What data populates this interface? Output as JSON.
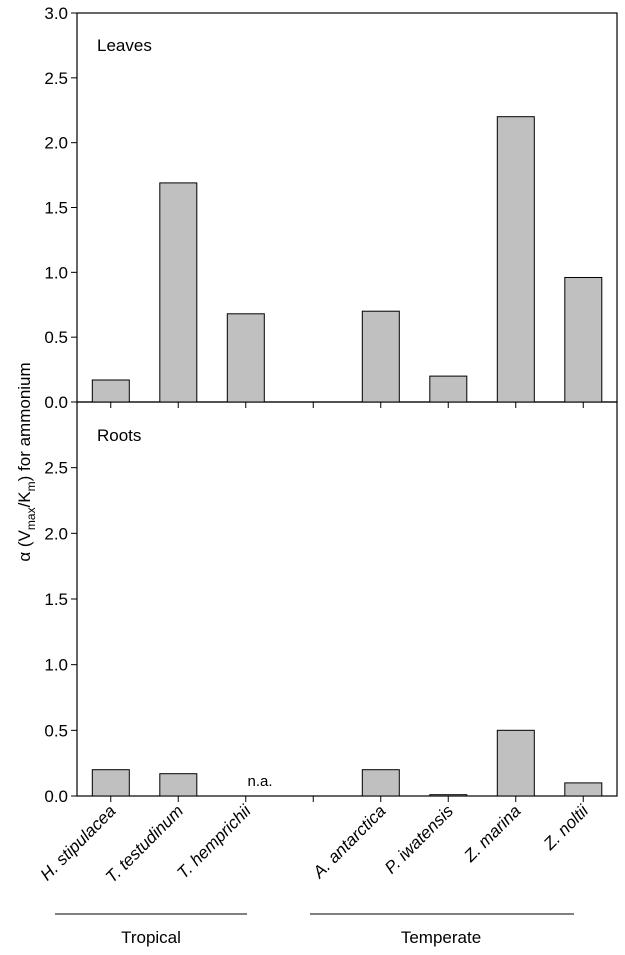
{
  "chart_data": [
    {
      "type": "bar",
      "panel": "Leaves",
      "categories": [
        "H. stipulacea",
        "T. testudinum",
        "T. hemprichii",
        "",
        "A. antarctica",
        "P. iwatensis",
        "Z. marina",
        "Z. noltii"
      ],
      "values": [
        0.17,
        1.69,
        0.68,
        null,
        0.7,
        0.2,
        2.2,
        0.96
      ],
      "ylim": [
        0,
        3.0
      ],
      "yticks": [
        "0.0",
        "0.5",
        "1.0",
        "1.5",
        "2.0",
        "2.5",
        "3.0"
      ],
      "bar_color": "#c0c0c0"
    },
    {
      "type": "bar",
      "panel": "Roots",
      "categories": [
        "H. stipulacea",
        "T. testudinum",
        "T. hemprichii",
        "",
        "A. antarctica",
        "P. iwatensis",
        "Z. marina",
        "Z. noltii"
      ],
      "values": [
        0.2,
        0.17,
        null,
        null,
        0.2,
        0.01,
        0.5,
        0.1
      ],
      "ylim": [
        0,
        3.0
      ],
      "yticks": [
        "0.0",
        "0.5",
        "1.0",
        "1.5",
        "2.0",
        "2.5"
      ],
      "bar_color": "#c0c0c0",
      "annotation": "n.a."
    }
  ],
  "ylabel": {
    "prefix": "α (V",
    "sub1": "max",
    "mid": "/K",
    "sub2": "m",
    "suffix": ") for ammonium"
  },
  "xlabels": [
    "H. stipulacea",
    "T. testudinum",
    "T. hemprichii",
    "A. antarctica",
    "P. iwatensis",
    "Z. marina",
    "Z. noltii"
  ],
  "groups": [
    "Tropical",
    "Temperate"
  ]
}
